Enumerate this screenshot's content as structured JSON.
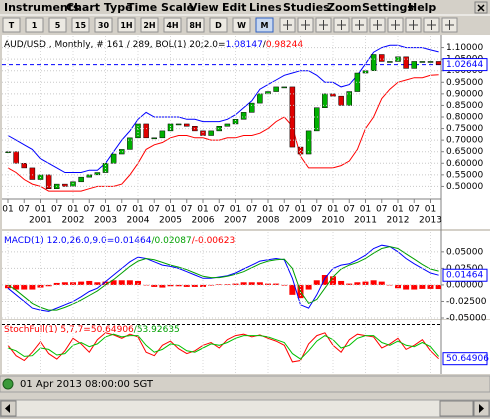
{
  "menu": [
    "Instruments",
    "Chart Type",
    "Time Scale",
    "View",
    "Edit",
    "Lines",
    "Studies",
    "Zoom",
    "Settings",
    "Help"
  ],
  "toolbar": [
    "T",
    "1",
    "5",
    "15",
    "30",
    "1H",
    "2H",
    "4H",
    "8H",
    "D",
    "W",
    "M"
  ],
  "status": "01 Apr 2013 08:00:00 SGT",
  "chart_data": [
    {
      "type": "candlestick",
      "legend_segments": [
        {
          "text": "AUD/USD , Monthly, # 161 / 289, BOL(1) 20;2.0=",
          "color": "#000000"
        },
        {
          "text": "1.08147",
          "color": "#0000ff"
        },
        {
          "text": "/",
          "color": "#000000"
        },
        {
          "text": "0.98244",
          "color": "#ff0000"
        }
      ],
      "close": [
        0.65,
        0.6,
        0.58,
        0.53,
        0.55,
        0.49,
        0.51,
        0.5,
        0.52,
        0.54,
        0.55,
        0.56,
        0.6,
        0.64,
        0.66,
        0.71,
        0.77,
        0.71,
        0.71,
        0.74,
        0.77,
        0.77,
        0.76,
        0.74,
        0.72,
        0.74,
        0.76,
        0.77,
        0.79,
        0.82,
        0.86,
        0.9,
        0.91,
        0.93,
        0.93,
        0.67,
        0.64,
        0.74,
        0.84,
        0.9,
        0.89,
        0.85,
        0.91,
        0.99,
        1.0,
        1.07,
        1.04,
        1.04,
        1.06,
        1.01,
        1.04,
        1.04,
        1.04,
        1.02644
      ],
      "up_color": "#00b000",
      "down_color": "#e00000",
      "bands": [
        {
          "color": "#0000ff",
          "values": [
            0.72,
            0.7,
            0.68,
            0.66,
            0.62,
            0.6,
            0.58,
            0.56,
            0.56,
            0.56,
            0.57,
            0.57,
            0.6,
            0.65,
            0.7,
            0.74,
            0.79,
            0.82,
            0.8,
            0.8,
            0.8,
            0.8,
            0.79,
            0.79,
            0.78,
            0.78,
            0.78,
            0.79,
            0.81,
            0.84,
            0.87,
            0.92,
            0.94,
            0.96,
            0.98,
            0.99,
            1.0,
            1.0,
            0.98,
            0.95,
            0.95,
            0.93,
            0.94,
            0.98,
            1.03,
            1.08,
            1.1,
            1.11,
            1.11,
            1.1,
            1.1,
            1.1,
            1.09,
            1.08147
          ]
        },
        {
          "color": "#ff0000",
          "values": [
            0.58,
            0.56,
            0.53,
            0.51,
            0.5,
            0.48,
            0.48,
            0.48,
            0.48,
            0.48,
            0.49,
            0.5,
            0.5,
            0.5,
            0.51,
            0.55,
            0.6,
            0.66,
            0.68,
            0.69,
            0.71,
            0.72,
            0.72,
            0.71,
            0.71,
            0.7,
            0.7,
            0.71,
            0.71,
            0.72,
            0.72,
            0.73,
            0.75,
            0.78,
            0.8,
            0.76,
            0.63,
            0.58,
            0.58,
            0.58,
            0.58,
            0.59,
            0.61,
            0.66,
            0.75,
            0.8,
            0.88,
            0.92,
            0.95,
            0.96,
            0.97,
            0.97,
            0.98,
            0.98244
          ]
        }
      ],
      "ylim": [
        0.45,
        1.15
      ],
      "yticks": [
        {
          "value": 1.1,
          "label": "1.10000"
        },
        {
          "value": 1.05,
          "label": "1.05000"
        },
        {
          "value": 1.0,
          "label": "1.00000"
        },
        {
          "value": 0.95,
          "label": "0.95000"
        },
        {
          "value": 0.9,
          "label": "0.90000"
        },
        {
          "value": 0.85,
          "label": "0.85000"
        },
        {
          "value": 0.8,
          "label": "0.80000"
        },
        {
          "value": 0.75,
          "label": "0.75000"
        },
        {
          "value": 0.7,
          "label": "0.70000"
        },
        {
          "value": 0.65,
          "label": "0.65000"
        },
        {
          "value": 0.6,
          "label": "0.60000"
        },
        {
          "value": 0.55,
          "label": "0.55000"
        },
        {
          "value": 0.5,
          "label": "0.50000"
        }
      ],
      "last_price": {
        "value": 1.02644,
        "label": "1.02644"
      },
      "xticks": [
        {
          "value": 0,
          "label": "01"
        },
        {
          "value": 2,
          "label": "07"
        },
        {
          "value": 4,
          "label": "01"
        },
        {
          "value": 6,
          "label": "07"
        },
        {
          "value": 8,
          "label": "01"
        },
        {
          "value": 10,
          "label": "07"
        },
        {
          "value": 12,
          "label": "01"
        },
        {
          "value": 14,
          "label": "07"
        },
        {
          "value": 16,
          "label": "01"
        },
        {
          "value": 18,
          "label": "07"
        },
        {
          "value": 20,
          "label": "01"
        },
        {
          "value": 22,
          "label": "07"
        },
        {
          "value": 24,
          "label": "01"
        },
        {
          "value": 26,
          "label": "07"
        },
        {
          "value": 28,
          "label": "01"
        },
        {
          "value": 30,
          "label": "07"
        },
        {
          "value": 32,
          "label": "01"
        },
        {
          "value": 34,
          "label": "07"
        },
        {
          "value": 36,
          "label": "01"
        },
        {
          "value": 38,
          "label": "07"
        },
        {
          "value": 40,
          "label": "01"
        },
        {
          "value": 42,
          "label": "07"
        },
        {
          "value": 44,
          "label": "01"
        },
        {
          "value": 46,
          "label": "07"
        },
        {
          "value": 48,
          "label": "01"
        },
        {
          "value": 50,
          "label": "07"
        },
        {
          "value": 52,
          "label": "01"
        }
      ],
      "year_labels": [
        {
          "value": 4,
          "label": "2001"
        },
        {
          "value": 8,
          "label": "2002"
        },
        {
          "value": 12,
          "label": "2003"
        },
        {
          "value": 16,
          "label": "2004"
        },
        {
          "value": 20,
          "label": "2005"
        },
        {
          "value": 24,
          "label": "2006"
        },
        {
          "value": 28,
          "label": "2007"
        },
        {
          "value": 32,
          "label": "2008"
        },
        {
          "value": 36,
          "label": "2009"
        },
        {
          "value": 40,
          "label": "2010"
        },
        {
          "value": 44,
          "label": "2011"
        },
        {
          "value": 48,
          "label": "2012"
        },
        {
          "value": 52,
          "label": "2013"
        }
      ],
      "grid": true
    },
    {
      "type": "macd",
      "legend_segments": [
        {
          "text": "MACD(1) 12.0,26.0,9.0=0.01464",
          "color": "#0000ff"
        },
        {
          "text": "/0.02087",
          "color": "#00a000"
        },
        {
          "text": "/-0.00623",
          "color": "#ff0000"
        }
      ],
      "histogram": {
        "color": "#ff0000",
        "values": [
          -0.005,
          -0.007,
          -0.007,
          -0.007,
          -0.004,
          -0.002,
          0.003,
          0.004,
          0.004,
          0.005,
          0.006,
          0.004,
          0.005,
          0.007,
          0.007,
          0.007,
          0.006,
          0.0,
          -0.003,
          -0.004,
          -0.002,
          -0.002,
          -0.003,
          -0.003,
          -0.003,
          -0.001,
          0.001,
          0.001,
          0.002,
          0.004,
          0.004,
          0.004,
          0.002,
          0.002,
          -0.001,
          -0.015,
          -0.02,
          -0.007,
          0.007,
          0.015,
          0.013,
          0.006,
          0.002,
          0.004,
          0.005,
          0.007,
          0.005,
          0.0,
          -0.005,
          -0.007,
          -0.007,
          -0.006,
          -0.006,
          -0.00623
        ]
      },
      "lines": [
        {
          "color": "#0000ff",
          "values": [
            -0.005,
            -0.015,
            -0.025,
            -0.035,
            -0.038,
            -0.04,
            -0.035,
            -0.03,
            -0.025,
            -0.018,
            -0.01,
            -0.005,
            0.005,
            0.015,
            0.025,
            0.035,
            0.042,
            0.04,
            0.035,
            0.03,
            0.028,
            0.025,
            0.02,
            0.015,
            0.01,
            0.01,
            0.012,
            0.014,
            0.018,
            0.024,
            0.03,
            0.036,
            0.038,
            0.04,
            0.038,
            0.01,
            -0.03,
            -0.035,
            -0.015,
            0.01,
            0.025,
            0.03,
            0.032,
            0.038,
            0.045,
            0.055,
            0.06,
            0.058,
            0.05,
            0.04,
            0.032,
            0.025,
            0.018,
            0.01464
          ]
        },
        {
          "color": "#00a000",
          "values": [
            0.0,
            -0.008,
            -0.018,
            -0.028,
            -0.034,
            -0.038,
            -0.038,
            -0.034,
            -0.029,
            -0.023,
            -0.016,
            -0.009,
            0.0,
            0.008,
            0.018,
            0.028,
            0.036,
            0.04,
            0.038,
            0.034,
            0.03,
            0.027,
            0.023,
            0.018,
            0.013,
            0.011,
            0.011,
            0.013,
            0.016,
            0.02,
            0.026,
            0.032,
            0.036,
            0.038,
            0.039,
            0.025,
            -0.01,
            -0.028,
            -0.022,
            -0.005,
            0.012,
            0.024,
            0.03,
            0.034,
            0.04,
            0.048,
            0.055,
            0.058,
            0.055,
            0.047,
            0.039,
            0.031,
            0.024,
            0.02087
          ]
        }
      ],
      "ylim": [
        -0.05,
        0.08
      ],
      "yticks": [
        {
          "value": 0.05,
          "label": "0.05000"
        },
        {
          "value": 0.025,
          "label": "0.02500"
        },
        {
          "value": 0,
          "label": "0.00000"
        },
        {
          "value": -0.025,
          "label": "-0.02500"
        },
        {
          "value": -0.05,
          "label": "-0.05000"
        }
      ],
      "last_value": {
        "value": 0.01464,
        "label": "0.01464"
      }
    },
    {
      "type": "line",
      "legend_segments": [
        {
          "text": "StochFull(1) 5,7,7=50.64906",
          "color": "#ff0000"
        },
        {
          "text": "/53.92635",
          "color": "#00a000"
        }
      ],
      "lines": [
        {
          "color": "#ff0000",
          "values": [
            70,
            55,
            48,
            60,
            75,
            58,
            50,
            62,
            80,
            72,
            60,
            78,
            88,
            85,
            80,
            86,
            82,
            60,
            55,
            70,
            76,
            65,
            58,
            62,
            70,
            74,
            66,
            78,
            84,
            86,
            82,
            85,
            80,
            76,
            70,
            46,
            48,
            72,
            84,
            88,
            70,
            60,
            78,
            86,
            84,
            82,
            66,
            72,
            80,
            64,
            70,
            78,
            62,
            50.64906
          ]
        },
        {
          "color": "#00c000",
          "values": [
            66,
            62,
            54,
            55,
            66,
            64,
            56,
            58,
            70,
            74,
            68,
            72,
            82,
            86,
            82,
            84,
            84,
            70,
            60,
            64,
            72,
            70,
            62,
            60,
            66,
            72,
            70,
            74,
            80,
            84,
            84,
            84,
            82,
            78,
            74,
            58,
            50,
            62,
            76,
            84,
            78,
            66,
            70,
            80,
            84,
            84,
            74,
            70,
            76,
            70,
            68,
            74,
            68,
            53.92635
          ]
        }
      ],
      "ylim": [
        30,
        105
      ],
      "levels": [
        100
      ],
      "last_value": {
        "value": 50.64906,
        "label": "50.64906"
      }
    }
  ]
}
